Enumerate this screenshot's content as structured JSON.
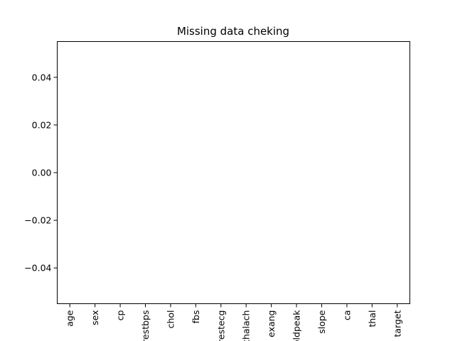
{
  "chart_data": {
    "type": "bar",
    "title": "Missing data cheking",
    "xlabel": "",
    "ylabel": "",
    "categories": [
      "age",
      "sex",
      "cp",
      "trestbps",
      "chol",
      "fbs",
      "restecg",
      "thalach",
      "exang",
      "oldpeak",
      "slope",
      "ca",
      "thal",
      "target"
    ],
    "series": [
      {
        "values": [
          0,
          0,
          0,
          0,
          0,
          0,
          0,
          0,
          0,
          0,
          0,
          0,
          0,
          0
        ]
      }
    ],
    "ylim": [
      -0.055,
      0.055
    ],
    "yticks": [
      -0.04,
      -0.02,
      0.0,
      0.02,
      0.04
    ],
    "ytick_labels": [
      "−0.04",
      "−0.02",
      "0.00",
      "0.02",
      "0.04"
    ],
    "grid": false,
    "legend": false
  }
}
